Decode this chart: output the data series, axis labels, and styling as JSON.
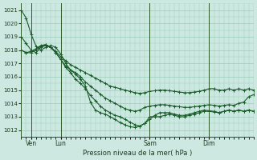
{
  "xlabel": "Pression niveau de la mer( hPa )",
  "background_color": "#cce8e0",
  "grid_color": "#99ccbb",
  "line_color": "#1a5c2a",
  "ylim": [
    1011.5,
    1021.5
  ],
  "yticks": [
    1012,
    1013,
    1014,
    1015,
    1016,
    1017,
    1018,
    1019,
    1020,
    1021
  ],
  "xtick_labels": [
    "Ven",
    "Lun",
    "Sam",
    "Dim"
  ],
  "xtick_positions": [
    2,
    8,
    26,
    38
  ],
  "vline_positions": [
    2,
    8,
    26,
    38
  ],
  "num_points": 48,
  "xlim": [
    0,
    47
  ],
  "series": [
    [
      1021.0,
      1020.4,
      1019.2,
      1018.3,
      1018.0,
      1018.2,
      1018.35,
      1018.2,
      1017.7,
      1017.0,
      1016.5,
      1016.2,
      1015.8,
      1015.3,
      1014.1,
      1013.5,
      1013.3,
      1013.2,
      1013.0,
      1012.8,
      1012.55,
      1012.4,
      1012.25,
      1012.2,
      1012.3,
      1012.5,
      1013.0,
      1013.0,
      1013.0,
      1013.1,
      1013.2,
      1013.1,
      1013.0,
      1013.0,
      1013.1,
      1013.2,
      1013.3,
      1013.4,
      1013.4,
      1013.35,
      1013.3,
      1013.4,
      1013.5,
      1013.4,
      1013.5,
      1013.4,
      1013.5,
      1013.4
    ],
    [
      1019.0,
      1018.5,
      1018.0,
      1017.8,
      1018.2,
      1018.35,
      1018.2,
      1017.8,
      1017.3,
      1016.7,
      1016.3,
      1015.8,
      1015.5,
      1015.1,
      1014.6,
      1014.2,
      1013.8,
      1013.5,
      1013.3,
      1013.1,
      1013.0,
      1012.8,
      1012.6,
      1012.4,
      1012.3,
      1012.5,
      1012.8,
      1013.1,
      1013.3,
      1013.3,
      1013.3,
      1013.2,
      1013.1,
      1013.1,
      1013.2,
      1013.3,
      1013.4,
      1013.5,
      1013.45,
      1013.4,
      1013.3,
      1013.4,
      1013.5,
      1013.4,
      1013.5,
      1013.4,
      1013.5,
      1013.4
    ],
    [
      1018.0,
      1017.8,
      1017.8,
      1018.0,
      1018.3,
      1018.4,
      1018.2,
      1017.8,
      1017.3,
      1016.8,
      1016.5,
      1016.3,
      1016.0,
      1015.6,
      1015.3,
      1015.0,
      1014.7,
      1014.4,
      1014.2,
      1014.0,
      1013.8,
      1013.6,
      1013.5,
      1013.4,
      1013.5,
      1013.7,
      1013.8,
      1013.85,
      1013.9,
      1013.9,
      1013.85,
      1013.8,
      1013.75,
      1013.7,
      1013.7,
      1013.75,
      1013.8,
      1013.85,
      1013.9,
      1013.85,
      1013.8,
      1013.85,
      1013.9,
      1013.85,
      1014.0,
      1014.1,
      1014.5,
      1014.65
    ],
    [
      1018.0,
      1017.8,
      1017.9,
      1018.1,
      1018.35,
      1018.4,
      1018.2,
      1017.9,
      1017.5,
      1017.2,
      1016.9,
      1016.7,
      1016.5,
      1016.3,
      1016.1,
      1015.9,
      1015.7,
      1015.5,
      1015.3,
      1015.2,
      1015.1,
      1015.0,
      1014.9,
      1014.8,
      1014.75,
      1014.8,
      1014.9,
      1014.95,
      1015.0,
      1015.0,
      1014.95,
      1014.9,
      1014.85,
      1014.8,
      1014.8,
      1014.85,
      1014.9,
      1015.0,
      1015.1,
      1015.1,
      1015.0,
      1015.0,
      1015.1,
      1015.0,
      1015.1,
      1015.0,
      1015.1,
      1015.0
    ]
  ],
  "marker_size": 2.0,
  "line_width": 0.8
}
